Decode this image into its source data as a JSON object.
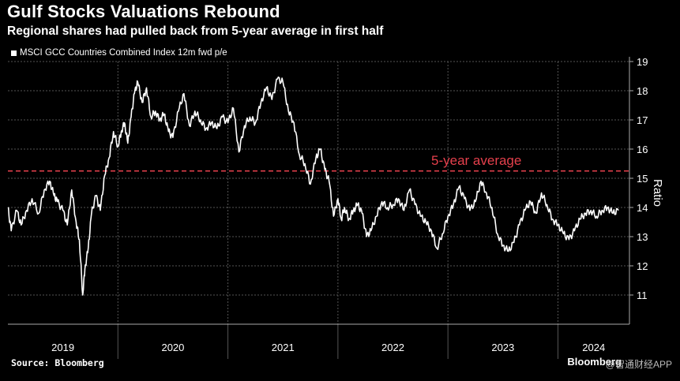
{
  "chart_data": {
    "type": "line",
    "title": "Gulf Stocks Valuations Rebound",
    "subtitle": "Regional shares had pulled back from 5-year average in first half",
    "legend": [
      "MSCI GCC Countries Combined Index 12m fwd p/e"
    ],
    "ylabel": "Ratio",
    "ylim": [
      10,
      19
    ],
    "yticks": [
      11,
      12,
      13,
      14,
      15,
      16,
      17,
      18,
      19
    ],
    "xlim": [
      2019.0,
      2024.65
    ],
    "xticks": [
      "2019",
      "2020",
      "2021",
      "2022",
      "2023",
      "2024"
    ],
    "average": {
      "label": "5-year average",
      "value": 15.25,
      "color": "#e5404c"
    },
    "series": [
      {
        "name": "MSCI GCC Countries Combined Index 12m fwd p/e",
        "color": "#ffffff",
        "x": [
          2019.0,
          2019.03,
          2019.08,
          2019.12,
          2019.17,
          2019.22,
          2019.28,
          2019.33,
          2019.38,
          2019.42,
          2019.45,
          2019.5,
          2019.54,
          2019.58,
          2019.62,
          2019.65,
          2019.68,
          2019.7,
          2019.73,
          2019.76,
          2019.8,
          2019.84,
          2019.88,
          2019.92,
          2019.96,
          2020.0,
          2020.03,
          2020.06,
          2020.09,
          2020.12,
          2020.15,
          2020.18,
          2020.22,
          2020.26,
          2020.3,
          2020.34,
          2020.38,
          2020.42,
          2020.46,
          2020.5,
          2020.55,
          2020.6,
          2020.65,
          2020.7,
          2020.75,
          2020.8,
          2020.85,
          2020.9,
          2020.95,
          2021.0,
          2021.05,
          2021.1,
          2021.15,
          2021.2,
          2021.25,
          2021.3,
          2021.35,
          2021.4,
          2021.45,
          2021.5,
          2021.55,
          2021.6,
          2021.65,
          2021.7,
          2021.75,
          2021.8,
          2021.84,
          2021.88,
          2021.92,
          2021.96,
          2022.0,
          2022.03,
          2022.06,
          2022.1,
          2022.14,
          2022.18,
          2022.22,
          2022.26,
          2022.3,
          2022.35,
          2022.4,
          2022.45,
          2022.5,
          2022.55,
          2022.6,
          2022.65,
          2022.7,
          2022.75,
          2022.8,
          2022.85,
          2022.9,
          2022.95,
          2023.0,
          2023.05,
          2023.1,
          2023.15,
          2023.2,
          2023.25,
          2023.3,
          2023.35,
          2023.4,
          2023.45,
          2023.5,
          2023.55,
          2023.6,
          2023.65,
          2023.7,
          2023.75,
          2023.8,
          2023.85,
          2023.9,
          2023.95,
          2024.0,
          2024.05,
          2024.1,
          2024.15,
          2024.2,
          2024.25,
          2024.3,
          2024.35,
          2024.4,
          2024.45,
          2024.5,
          2024.55
        ],
        "values": [
          14.0,
          13.2,
          13.9,
          13.4,
          13.9,
          14.3,
          13.8,
          14.6,
          14.9,
          14.4,
          14.2,
          13.9,
          13.4,
          14.6,
          13.5,
          12.9,
          11.0,
          11.9,
          12.6,
          13.8,
          14.4,
          13.9,
          15.1,
          15.7,
          16.6,
          16.1,
          16.6,
          16.9,
          16.2,
          17.1,
          17.9,
          18.3,
          17.6,
          18.1,
          17.1,
          17.3,
          17.0,
          17.2,
          16.6,
          16.4,
          17.3,
          17.9,
          16.8,
          17.3,
          17.0,
          16.7,
          16.9,
          16.7,
          17.1,
          16.9,
          17.4,
          15.9,
          16.8,
          17.1,
          16.9,
          17.6,
          18.1,
          17.7,
          18.4,
          18.3,
          17.3,
          16.9,
          15.8,
          15.5,
          14.8,
          15.7,
          16.0,
          15.3,
          14.9,
          13.7,
          14.3,
          13.6,
          14.0,
          13.6,
          13.9,
          14.1,
          13.8,
          13.0,
          13.2,
          13.7,
          14.2,
          14.0,
          14.1,
          14.3,
          13.9,
          14.6,
          14.1,
          13.7,
          13.5,
          13.2,
          12.6,
          13.1,
          13.7,
          14.1,
          14.7,
          14.3,
          13.9,
          14.2,
          14.9,
          14.5,
          14.0,
          13.1,
          12.7,
          12.5,
          12.8,
          13.4,
          13.9,
          14.2,
          13.8,
          14.5,
          14.1,
          13.6,
          13.4,
          13.1,
          12.9,
          13.2,
          13.6,
          13.8,
          13.9,
          13.7,
          13.9,
          14.0,
          13.8,
          13.9
        ]
      }
    ]
  },
  "source_text": "Source: Bloomberg",
  "logo_text": "Bloomberg",
  "watermark_text": "@智通财经APP"
}
